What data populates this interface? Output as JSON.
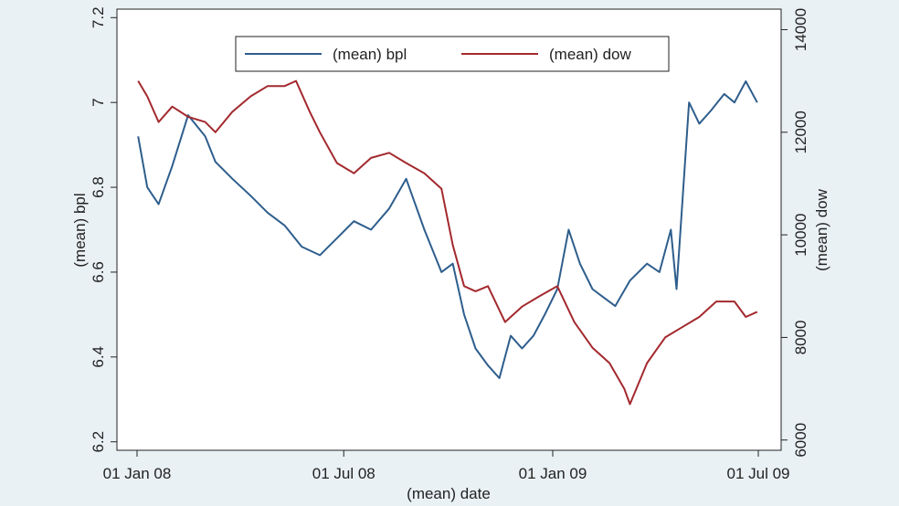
{
  "chart_data": {
    "type": "line",
    "xlabel": "(mean) date",
    "ylabel_left": "(mean) bpl",
    "ylabel_right": "(mean) dow",
    "x_ticks": [
      "01 Jan 08",
      "01 Jul 08",
      "01 Jan 09",
      "01 Jul 09"
    ],
    "xlim": [
      "2008-01-01",
      "2009-07-01"
    ],
    "y_left_ticks": [
      "6.2",
      "6.4",
      "6.6",
      "6.8",
      "7",
      "7.2"
    ],
    "ylim_left": [
      6.18,
      7.22
    ],
    "y_right_ticks": [
      "6000",
      "8000",
      "10000",
      "12000",
      "14000"
    ],
    "ylim_right": [
      5800,
      14400
    ],
    "grid": false,
    "legend_position": "top",
    "series": [
      {
        "name": "(mean) bpl",
        "axis": "left",
        "color": "#2e5e8c",
        "x": [
          "2008-01-02",
          "2008-01-10",
          "2008-01-20",
          "2008-02-01",
          "2008-02-15",
          "2008-03-01",
          "2008-03-10",
          "2008-03-25",
          "2008-04-10",
          "2008-04-25",
          "2008-05-10",
          "2008-05-25",
          "2008-06-10",
          "2008-06-25",
          "2008-07-10",
          "2008-07-25",
          "2008-08-10",
          "2008-08-25",
          "2008-09-10",
          "2008-09-25",
          "2008-10-05",
          "2008-10-15",
          "2008-10-25",
          "2008-11-05",
          "2008-11-15",
          "2008-11-25",
          "2008-12-05",
          "2008-12-15",
          "2008-12-25",
          "2009-01-05",
          "2009-01-15",
          "2009-01-25",
          "2009-02-05",
          "2009-02-15",
          "2009-02-25",
          "2009-03-10",
          "2009-03-25",
          "2009-04-05",
          "2009-04-15",
          "2009-04-20",
          "2009-05-01",
          "2009-05-10",
          "2009-05-20",
          "2009-06-01",
          "2009-06-10",
          "2009-06-20",
          "2009-06-30"
        ],
        "values": [
          6.92,
          6.8,
          6.76,
          6.85,
          6.97,
          6.92,
          6.86,
          6.82,
          6.78,
          6.74,
          6.71,
          6.66,
          6.64,
          6.68,
          6.72,
          6.7,
          6.75,
          6.82,
          6.7,
          6.6,
          6.62,
          6.5,
          6.42,
          6.38,
          6.35,
          6.45,
          6.42,
          6.45,
          6.5,
          6.56,
          6.7,
          6.62,
          6.56,
          6.54,
          6.52,
          6.58,
          6.62,
          6.6,
          6.7,
          6.56,
          7.0,
          6.95,
          6.98,
          7.02,
          7.0,
          7.05,
          7.0
        ]
      },
      {
        "name": "(mean) dow",
        "axis": "right",
        "color": "#a3292e",
        "x": [
          "2008-01-02",
          "2008-01-10",
          "2008-01-20",
          "2008-02-01",
          "2008-02-15",
          "2008-03-01",
          "2008-03-10",
          "2008-03-25",
          "2008-04-10",
          "2008-04-25",
          "2008-05-10",
          "2008-05-20",
          "2008-06-01",
          "2008-06-10",
          "2008-06-25",
          "2008-07-10",
          "2008-07-25",
          "2008-08-10",
          "2008-08-25",
          "2008-09-10",
          "2008-09-25",
          "2008-10-05",
          "2008-10-15",
          "2008-10-25",
          "2008-11-05",
          "2008-11-20",
          "2008-12-05",
          "2008-12-20",
          "2009-01-05",
          "2009-01-20",
          "2009-02-05",
          "2009-02-20",
          "2009-03-05",
          "2009-03-10",
          "2009-03-25",
          "2009-04-10",
          "2009-04-25",
          "2009-05-10",
          "2009-05-25",
          "2009-06-10",
          "2009-06-20",
          "2009-06-30"
        ],
        "values": [
          13000,
          12700,
          12200,
          12500,
          12300,
          12200,
          12000,
          12400,
          12700,
          12900,
          12900,
          13000,
          12400,
          12000,
          11400,
          11200,
          11500,
          11600,
          11400,
          11200,
          10900,
          9800,
          9000,
          8900,
          9000,
          8300,
          8600,
          8800,
          9000,
          8300,
          7800,
          7500,
          7000,
          6700,
          7500,
          8000,
          8200,
          8400,
          8700,
          8700,
          8400,
          8500
        ]
      }
    ]
  }
}
